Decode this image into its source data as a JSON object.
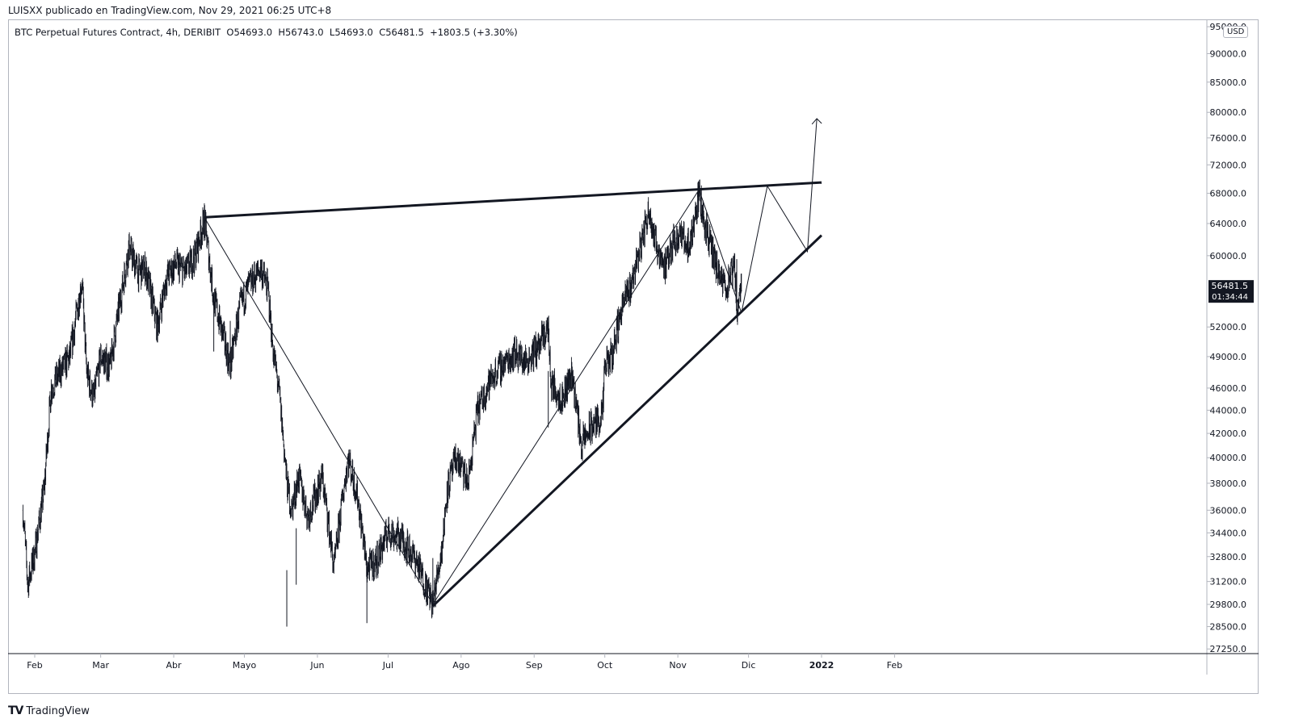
{
  "header": {
    "text": "LUISXX publicado en TradingView.com, Nov 29, 2021 06:25 UTC+8"
  },
  "legend": {
    "symbol": "BTC Perpetual Futures Contract, 4h, DERIBIT",
    "open_label": "O",
    "open": "54693.0",
    "high_label": "H",
    "high": "56743.0",
    "low_label": "L",
    "low": "54693.0",
    "close_label": "C",
    "close": "56481.5",
    "change": "+1803.5 (+3.30%)"
  },
  "currency": "USD",
  "price_badge": {
    "price": "56481.5",
    "countdown": "01:34:44"
  },
  "footer": {
    "brand": "TradingView",
    "logo": "TV"
  },
  "colors": {
    "ink": "#131722",
    "axis": "#b2b5be",
    "badge": "#131722"
  },
  "chart_data": {
    "type": "candlestick-line",
    "scale": "log",
    "y_ticks": [
      "95000.0",
      "90000.0",
      "85000.0",
      "80000.0",
      "76000.0",
      "72000.0",
      "68000.0",
      "64000.0",
      "60000.0",
      "52000.0",
      "49000.0",
      "46000.0",
      "44000.0",
      "42000.0",
      "40000.0",
      "38000.0",
      "36000.0",
      "34400.0",
      "32800.0",
      "31200.0",
      "29800.0",
      "28500.0",
      "27250.0"
    ],
    "x_ticks": [
      "Feb",
      "Mar",
      "Abr",
      "Mayo",
      "Jun",
      "Jul",
      "Ago",
      "Sep",
      "Oct",
      "Nov",
      "Dic",
      "2022",
      "Feb"
    ],
    "price_path": [
      [
        "2021-01-27",
        36000
      ],
      [
        "2021-01-29",
        31000
      ],
      [
        "2021-02-01",
        33000
      ],
      [
        "2021-02-05",
        37500
      ],
      [
        "2021-02-08",
        46000
      ],
      [
        "2021-02-12",
        47500
      ],
      [
        "2021-02-16",
        49000
      ],
      [
        "2021-02-21",
        57000
      ],
      [
        "2021-02-23",
        47500
      ],
      [
        "2021-02-26",
        45000
      ],
      [
        "2021-03-01",
        49000
      ],
      [
        "2021-03-05",
        48000
      ],
      [
        "2021-03-10",
        56000
      ],
      [
        "2021-03-13",
        61000
      ],
      [
        "2021-03-17",
        58000
      ],
      [
        "2021-03-20",
        58500
      ],
      [
        "2021-03-25",
        52000
      ],
      [
        "2021-03-29",
        57500
      ],
      [
        "2021-04-02",
        59000
      ],
      [
        "2021-04-06",
        58000
      ],
      [
        "2021-04-10",
        60000
      ],
      [
        "2021-04-14",
        64500
      ],
      [
        "2021-04-18",
        55000
      ],
      [
        "2021-04-22",
        51000
      ],
      [
        "2021-04-25",
        48000
      ],
      [
        "2021-04-29",
        54000
      ],
      [
        "2021-05-03",
        56500
      ],
      [
        "2021-05-08",
        58500
      ],
      [
        "2021-05-11",
        56000
      ],
      [
        "2021-05-13",
        50000
      ],
      [
        "2021-05-16",
        45000
      ],
      [
        "2021-05-19",
        38000
      ],
      [
        "2021-05-21",
        36000
      ],
      [
        "2021-05-24",
        38500
      ],
      [
        "2021-05-28",
        35500
      ],
      [
        "2021-06-03",
        38500
      ],
      [
        "2021-06-08",
        32000
      ],
      [
        "2021-06-14",
        40000
      ],
      [
        "2021-06-18",
        37000
      ],
      [
        "2021-06-22",
        32000
      ],
      [
        "2021-06-26",
        32500
      ],
      [
        "2021-07-01",
        34500
      ],
      [
        "2021-07-07",
        34000
      ],
      [
        "2021-07-13",
        32500
      ],
      [
        "2021-07-20",
        29800
      ],
      [
        "2021-07-24",
        33500
      ],
      [
        "2021-07-26",
        37500
      ],
      [
        "2021-07-30",
        40000
      ],
      [
        "2021-08-04",
        38000
      ],
      [
        "2021-08-08",
        44000
      ],
      [
        "2021-08-14",
        47000
      ],
      [
        "2021-08-20",
        48500
      ],
      [
        "2021-08-24",
        49500
      ],
      [
        "2021-08-28",
        48500
      ],
      [
        "2021-09-03",
        50000
      ],
      [
        "2021-09-07",
        52000
      ],
      [
        "2021-09-08",
        46500
      ],
      [
        "2021-09-13",
        45000
      ],
      [
        "2021-09-17",
        47500
      ],
      [
        "2021-09-21",
        41000
      ],
      [
        "2021-09-25",
        42500
      ],
      [
        "2021-09-30",
        43500
      ],
      [
        "2021-10-01",
        48000
      ],
      [
        "2021-10-04",
        49000
      ],
      [
        "2021-10-08",
        54000
      ],
      [
        "2021-10-12",
        56500
      ],
      [
        "2021-10-16",
        61000
      ],
      [
        "2021-10-20",
        66000
      ],
      [
        "2021-10-22",
        62000
      ],
      [
        "2021-10-27",
        58500
      ],
      [
        "2021-10-30",
        62000
      ],
      [
        "2021-11-02",
        62500
      ],
      [
        "2021-11-06",
        61000
      ],
      [
        "2021-11-10",
        68000
      ],
      [
        "2021-11-12",
        64500
      ],
      [
        "2021-11-16",
        60000
      ],
      [
        "2021-11-19",
        57000
      ],
      [
        "2021-11-22",
        56500
      ],
      [
        "2021-11-25",
        58500
      ],
      [
        "2021-11-26",
        54000
      ],
      [
        "2021-11-28",
        56481.5
      ]
    ],
    "trendlines": [
      {
        "name": "upper",
        "from": [
          "2021-04-14",
          64800
        ],
        "to": [
          "2022-01-01",
          69500
        ]
      },
      {
        "name": "lower",
        "from": [
          "2021-07-20",
          29700
        ],
        "to": [
          "2022-01-01",
          62500
        ]
      }
    ],
    "projection": [
      [
        "2021-11-28",
        53500
      ],
      [
        "2021-12-09",
        69000
      ],
      [
        "2021-12-26",
        60500
      ],
      [
        "2021-12-30",
        79000
      ]
    ],
    "swing_lines": [
      [
        [
          "2021-04-14",
          64800
        ],
        [
          "2021-07-20",
          29800
        ]
      ],
      [
        [
          "2021-07-20",
          29800
        ],
        [
          "2021-11-10",
          68500
        ]
      ],
      [
        [
          "2021-11-10",
          68500
        ],
        [
          "2021-11-28",
          53500
        ]
      ]
    ]
  }
}
